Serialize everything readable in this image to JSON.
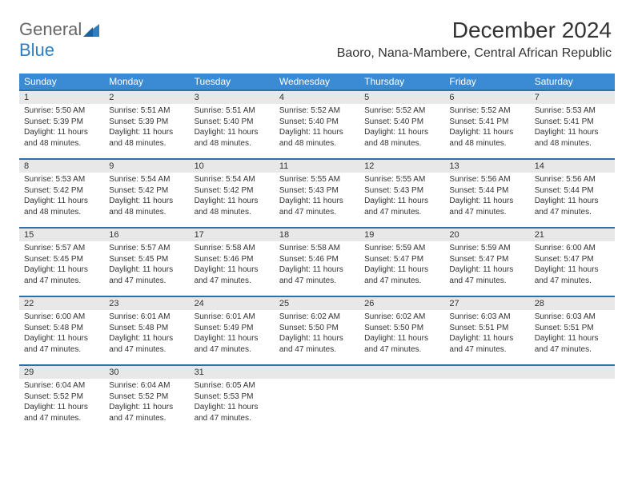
{
  "logo": {
    "part1": "General",
    "part2": "Blue"
  },
  "title": "December 2024",
  "subtitle": "Baoro, Nana-Mambere, Central African Republic",
  "colors": {
    "header_bg": "#3b8bd4",
    "header_text": "#ffffff",
    "daynum_bg": "#e8e8e8",
    "rule": "#2f6fa8",
    "text": "#333333",
    "logo_gray": "#666666",
    "logo_blue": "#2f7fbf",
    "page_bg": "#ffffff"
  },
  "weekdays": [
    "Sunday",
    "Monday",
    "Tuesday",
    "Wednesday",
    "Thursday",
    "Friday",
    "Saturday"
  ],
  "weeks": [
    [
      {
        "n": "1",
        "sr": "5:50 AM",
        "ss": "5:39 PM",
        "dl": "11 hours and 48 minutes."
      },
      {
        "n": "2",
        "sr": "5:51 AM",
        "ss": "5:39 PM",
        "dl": "11 hours and 48 minutes."
      },
      {
        "n": "3",
        "sr": "5:51 AM",
        "ss": "5:40 PM",
        "dl": "11 hours and 48 minutes."
      },
      {
        "n": "4",
        "sr": "5:52 AM",
        "ss": "5:40 PM",
        "dl": "11 hours and 48 minutes."
      },
      {
        "n": "5",
        "sr": "5:52 AM",
        "ss": "5:40 PM",
        "dl": "11 hours and 48 minutes."
      },
      {
        "n": "6",
        "sr": "5:52 AM",
        "ss": "5:41 PM",
        "dl": "11 hours and 48 minutes."
      },
      {
        "n": "7",
        "sr": "5:53 AM",
        "ss": "5:41 PM",
        "dl": "11 hours and 48 minutes."
      }
    ],
    [
      {
        "n": "8",
        "sr": "5:53 AM",
        "ss": "5:42 PM",
        "dl": "11 hours and 48 minutes."
      },
      {
        "n": "9",
        "sr": "5:54 AM",
        "ss": "5:42 PM",
        "dl": "11 hours and 48 minutes."
      },
      {
        "n": "10",
        "sr": "5:54 AM",
        "ss": "5:42 PM",
        "dl": "11 hours and 48 minutes."
      },
      {
        "n": "11",
        "sr": "5:55 AM",
        "ss": "5:43 PM",
        "dl": "11 hours and 47 minutes."
      },
      {
        "n": "12",
        "sr": "5:55 AM",
        "ss": "5:43 PM",
        "dl": "11 hours and 47 minutes."
      },
      {
        "n": "13",
        "sr": "5:56 AM",
        "ss": "5:44 PM",
        "dl": "11 hours and 47 minutes."
      },
      {
        "n": "14",
        "sr": "5:56 AM",
        "ss": "5:44 PM",
        "dl": "11 hours and 47 minutes."
      }
    ],
    [
      {
        "n": "15",
        "sr": "5:57 AM",
        "ss": "5:45 PM",
        "dl": "11 hours and 47 minutes."
      },
      {
        "n": "16",
        "sr": "5:57 AM",
        "ss": "5:45 PM",
        "dl": "11 hours and 47 minutes."
      },
      {
        "n": "17",
        "sr": "5:58 AM",
        "ss": "5:46 PM",
        "dl": "11 hours and 47 minutes."
      },
      {
        "n": "18",
        "sr": "5:58 AM",
        "ss": "5:46 PM",
        "dl": "11 hours and 47 minutes."
      },
      {
        "n": "19",
        "sr": "5:59 AM",
        "ss": "5:47 PM",
        "dl": "11 hours and 47 minutes."
      },
      {
        "n": "20",
        "sr": "5:59 AM",
        "ss": "5:47 PM",
        "dl": "11 hours and 47 minutes."
      },
      {
        "n": "21",
        "sr": "6:00 AM",
        "ss": "5:47 PM",
        "dl": "11 hours and 47 minutes."
      }
    ],
    [
      {
        "n": "22",
        "sr": "6:00 AM",
        "ss": "5:48 PM",
        "dl": "11 hours and 47 minutes."
      },
      {
        "n": "23",
        "sr": "6:01 AM",
        "ss": "5:48 PM",
        "dl": "11 hours and 47 minutes."
      },
      {
        "n": "24",
        "sr": "6:01 AM",
        "ss": "5:49 PM",
        "dl": "11 hours and 47 minutes."
      },
      {
        "n": "25",
        "sr": "6:02 AM",
        "ss": "5:50 PM",
        "dl": "11 hours and 47 minutes."
      },
      {
        "n": "26",
        "sr": "6:02 AM",
        "ss": "5:50 PM",
        "dl": "11 hours and 47 minutes."
      },
      {
        "n": "27",
        "sr": "6:03 AM",
        "ss": "5:51 PM",
        "dl": "11 hours and 47 minutes."
      },
      {
        "n": "28",
        "sr": "6:03 AM",
        "ss": "5:51 PM",
        "dl": "11 hours and 47 minutes."
      }
    ],
    [
      {
        "n": "29",
        "sr": "6:04 AM",
        "ss": "5:52 PM",
        "dl": "11 hours and 47 minutes."
      },
      {
        "n": "30",
        "sr": "6:04 AM",
        "ss": "5:52 PM",
        "dl": "11 hours and 47 minutes."
      },
      {
        "n": "31",
        "sr": "6:05 AM",
        "ss": "5:53 PM",
        "dl": "11 hours and 47 minutes."
      },
      null,
      null,
      null,
      null
    ]
  ],
  "labels": {
    "sunrise": "Sunrise: ",
    "sunset": "Sunset: ",
    "daylight": "Daylight: "
  }
}
